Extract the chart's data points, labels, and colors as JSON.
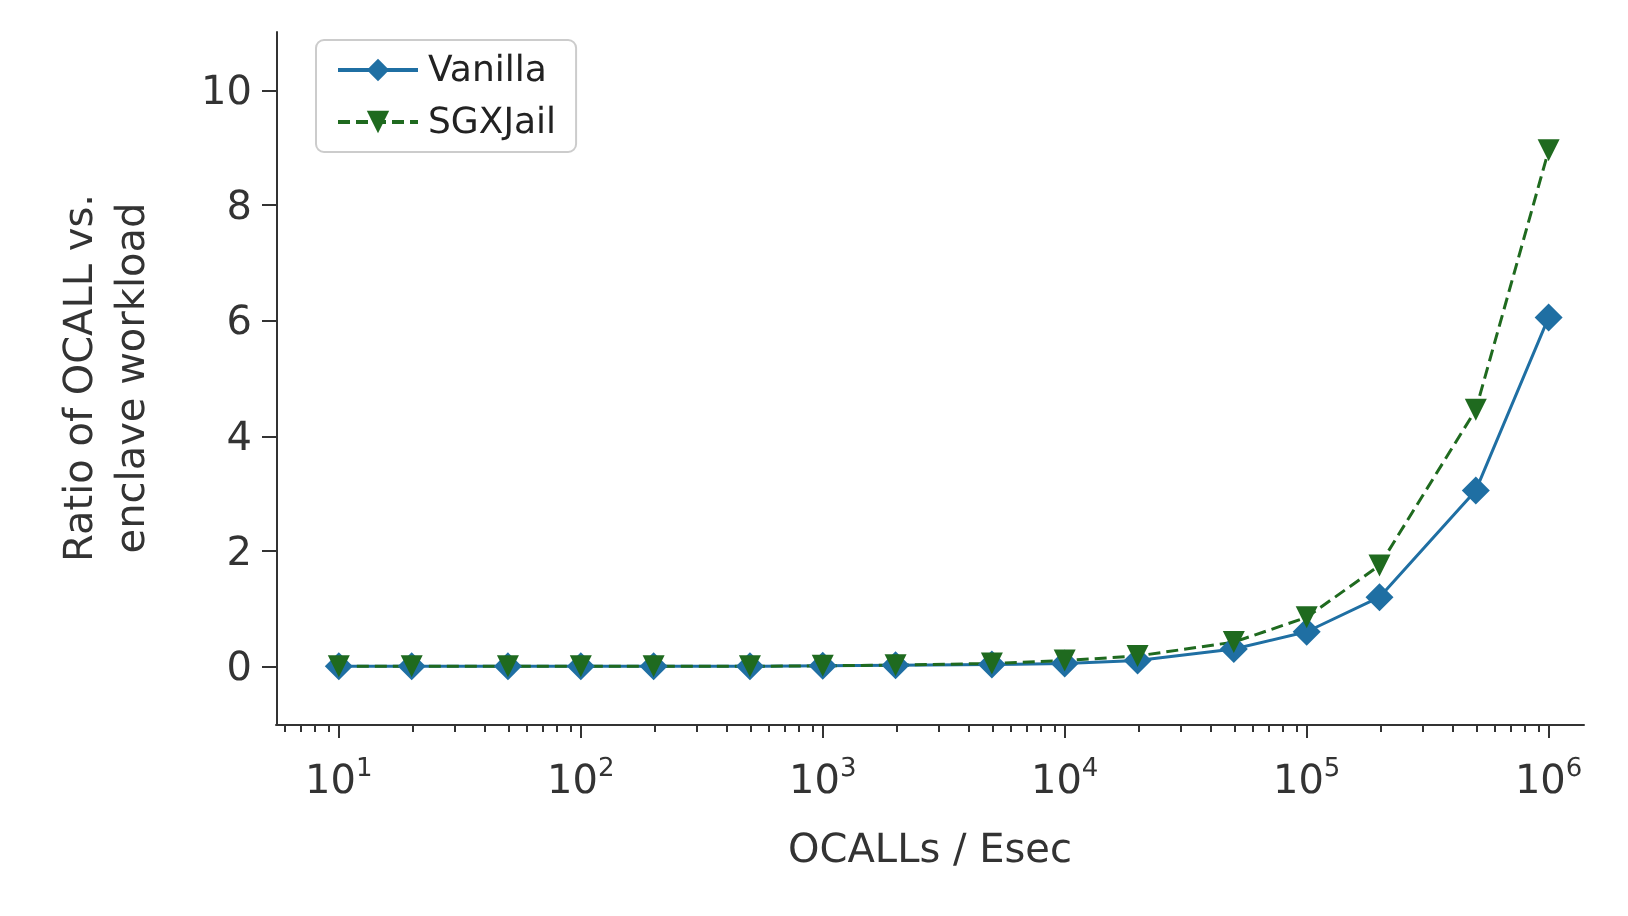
{
  "chart_data": {
    "type": "line",
    "xlabel": "OCALLs / Esec",
    "ylabel": "Ratio of OCALL vs.\nenclave workload",
    "x": [
      10,
      20,
      50,
      100,
      200,
      500,
      1000,
      2000,
      5000,
      10000,
      20000,
      50000,
      100000,
      200000,
      500000,
      1000000
    ],
    "series": [
      {
        "name": "Vanilla",
        "color": "#1f6fa3",
        "marker": "diamond",
        "line_style": "solid",
        "values": [
          0,
          0,
          0,
          0,
          0,
          0,
          0.01,
          0.02,
          0.03,
          0.05,
          0.1,
          0.3,
          0.6,
          1.2,
          3.05,
          6.05
        ]
      },
      {
        "name": "SGXJail",
        "color": "#1f6a1f",
        "marker": "triangle-down",
        "line_style": "dashed",
        "values": [
          0,
          0,
          0,
          0,
          0,
          0,
          0.01,
          0.02,
          0.05,
          0.1,
          0.18,
          0.42,
          0.85,
          1.75,
          4.45,
          8.95
        ]
      }
    ],
    "log": "x",
    "xlim": [
      5.5,
      1400000
    ],
    "ylim": [
      -1,
      11
    ],
    "yticks": [
      0,
      2,
      4,
      6,
      8,
      10
    ],
    "xticks": [
      {
        "value": 6,
        "label": null
      },
      {
        "value": 7,
        "label": null
      },
      {
        "value": 8,
        "label": null
      },
      {
        "value": 9,
        "label": null
      },
      {
        "value": 10,
        "label": "10$^{1}$"
      },
      {
        "value": 20,
        "label": null
      },
      {
        "value": 30,
        "label": null
      },
      {
        "value": 40,
        "label": null
      },
      {
        "value": 50,
        "label": null
      },
      {
        "value": 60,
        "label": null
      },
      {
        "value": 70,
        "label": null
      },
      {
        "value": 80,
        "label": null
      },
      {
        "value": 90,
        "label": null
      },
      {
        "value": 100,
        "label": "10$^{2}$"
      },
      {
        "value": 200,
        "label": null
      },
      {
        "value": 300,
        "label": null
      },
      {
        "value": 400,
        "label": null
      },
      {
        "value": 500,
        "label": null
      },
      {
        "value": 600,
        "label": null
      },
      {
        "value": 700,
        "label": null
      },
      {
        "value": 800,
        "label": null
      },
      {
        "value": 900,
        "label": null
      },
      {
        "value": 1000,
        "label": "10$^{3}$"
      },
      {
        "value": 2000,
        "label": null
      },
      {
        "value": 3000,
        "label": null
      },
      {
        "value": 4000,
        "label": null
      },
      {
        "value": 5000,
        "label": null
      },
      {
        "value": 6000,
        "label": null
      },
      {
        "value": 7000,
        "label": null
      },
      {
        "value": 8000,
        "label": null
      },
      {
        "value": 9000,
        "label": null
      },
      {
        "value": 10000,
        "label": "10$^{4}$"
      },
      {
        "value": 20000,
        "label": null
      },
      {
        "value": 30000,
        "label": null
      },
      {
        "value": 40000,
        "label": null
      },
      {
        "value": 50000,
        "label": null
      },
      {
        "value": 60000,
        "label": null
      },
      {
        "value": 70000,
        "label": null
      },
      {
        "value": 80000,
        "label": null
      },
      {
        "value": 90000,
        "label": null
      },
      {
        "value": 100000,
        "label": "10$^{5}$"
      },
      {
        "value": 200000,
        "label": null
      },
      {
        "value": 300000,
        "label": null
      },
      {
        "value": 400000,
        "label": null
      },
      {
        "value": 500000,
        "label": null
      },
      {
        "value": 600000,
        "label": null
      },
      {
        "value": 700000,
        "label": null
      },
      {
        "value": 800000,
        "label": null
      },
      {
        "value": 900000,
        "label": null
      },
      {
        "value": 1000000,
        "label": "10$^{6}$"
      }
    ],
    "grid": false,
    "legend": "top left"
  }
}
